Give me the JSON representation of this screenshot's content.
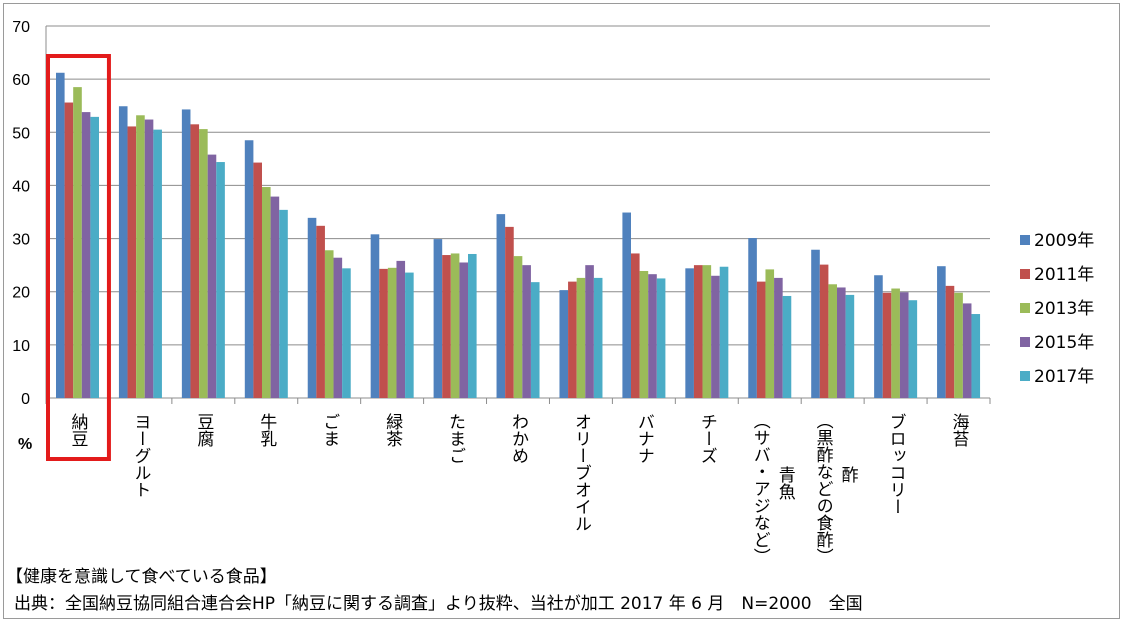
{
  "chart_data": {
    "type": "bar",
    "title": "【健康を意識して食べている食品】",
    "source": "出典：全国納豆協同組合連合会HP「納豆に関する調査」より抜粋、当社が加工 2017 年 6 月　N=2000　全国",
    "ylabel": "%",
    "ylim": [
      0,
      70
    ],
    "yticks": [
      0,
      10,
      20,
      30,
      40,
      50,
      60,
      70
    ],
    "grid": true,
    "legend_position": "right",
    "highlight_category_index": 0,
    "highlight_color": "#e31b1b",
    "categories": [
      "納豆",
      "ヨーグルト",
      "豆腐",
      "牛乳",
      "ごま",
      "緑茶",
      "たまご",
      "わかめ",
      "オリーブオイル",
      "バナナ",
      "チーズ",
      "青魚（サバ・アジなど）",
      "酢（黒酢などの食酢）",
      "ブロッコリー",
      "海苔"
    ],
    "series": [
      {
        "name": "2009年",
        "color": "#4f81bd",
        "values": [
          61.2,
          54.9,
          54.3,
          48.5,
          33.9,
          30.8,
          29.9,
          34.6,
          20.3,
          34.9,
          24.4,
          30.1,
          27.9,
          23.1,
          24.8
        ]
      },
      {
        "name": "2011年",
        "color": "#c0504d",
        "values": [
          55.6,
          51.1,
          51.5,
          44.3,
          32.4,
          24.3,
          26.9,
          32.2,
          21.9,
          27.2,
          25.0,
          21.9,
          25.1,
          19.8,
          21.1
        ]
      },
      {
        "name": "2013年",
        "color": "#9bbb59",
        "values": [
          58.5,
          53.2,
          50.6,
          39.7,
          27.8,
          24.5,
          27.2,
          26.7,
          22.6,
          23.9,
          25.0,
          24.2,
          21.4,
          20.6,
          19.8
        ]
      },
      {
        "name": "2015年",
        "color": "#8064a2",
        "values": [
          53.8,
          52.4,
          45.8,
          37.9,
          26.4,
          25.8,
          25.5,
          25.0,
          25.0,
          23.3,
          23.0,
          22.6,
          20.8,
          19.9,
          17.8
        ]
      },
      {
        "name": "2017年",
        "color": "#4bacc6",
        "values": [
          52.9,
          50.5,
          44.4,
          35.4,
          24.4,
          23.6,
          27.1,
          21.8,
          22.6,
          22.5,
          24.7,
          19.2,
          19.4,
          18.4,
          15.8
        ]
      }
    ]
  }
}
